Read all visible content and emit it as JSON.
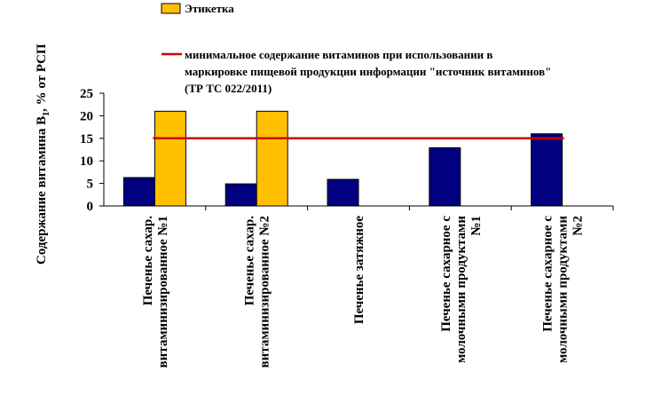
{
  "chart_data": {
    "type": "bar",
    "categories": [
      [
        "Печенье  сахар.",
        "витаминизированное  №1"
      ],
      [
        "Печенье  сахар.",
        "витаминизированное  №2"
      ],
      [
        "Печенье  затяжное"
      ],
      [
        "Печенье сахарное с",
        "молочными продуктами",
        "№1"
      ],
      [
        "Печенье сахарное с",
        "молочными продуктами",
        "№2"
      ]
    ],
    "series": [
      {
        "name": "",
        "color": "#000080",
        "values": [
          6.3,
          4.9,
          5.9,
          12.9,
          16.0
        ]
      },
      {
        "name": "Этикетка",
        "color": "#FFC000",
        "values": [
          21,
          21,
          null,
          null,
          null
        ]
      }
    ],
    "reference_line": {
      "value": 15,
      "color": "#CC0000",
      "label_lines": [
        "минимальное содержание витаминов при использовании в",
        "маркировке пищевой продукции информации \"источник витаминов\"",
        "(ТР ТС 022/2011)"
      ]
    },
    "ylabel_main": "Содержание витамина B",
    "ylabel_sub": "1",
    "ylabel_tail": ", % от  РСП",
    "ylim": [
      0,
      25
    ],
    "yticks": [
      0,
      5,
      10,
      15,
      20,
      25
    ],
    "legend_position": "top"
  }
}
